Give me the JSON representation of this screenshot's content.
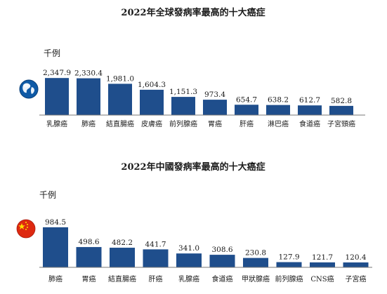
{
  "chart_data": [
    {
      "type": "bar",
      "title": "2022年全球發病率最高的十大癌症",
      "ylabel": "千例",
      "categories": [
        "乳腺癌",
        "肺癌",
        "結直腸癌",
        "皮膚癌",
        "前列腺癌",
        "胃癌",
        "肝癌",
        "淋巴癌",
        "食道癌",
        "子宮頸癌"
      ],
      "values": [
        2347.9,
        2330.4,
        1981.0,
        1604.3,
        1151.3,
        973.4,
        654.7,
        638.2,
        612.7,
        582.8
      ],
      "value_labels": [
        "2,347.9",
        "2,330.4",
        "1,981.0",
        "1,604.3",
        "1,151.3",
        "973.4",
        "654.7",
        "638.2",
        "612.7",
        "582.8"
      ],
      "ylim": [
        0,
        2400
      ],
      "grid": false,
      "legend": "none",
      "bar_color": "#1f4e8c",
      "icon": "globe-icon"
    },
    {
      "type": "bar",
      "title": "2022年中國發病率最高的十大癌症",
      "ylabel": "千例",
      "categories": [
        "肺癌",
        "胃癌",
        "結直腸癌",
        "肝癌",
        "乳腺癌",
        "食道癌",
        "甲狀腺癌",
        "前列腺癌",
        "CNS癌",
        "子宮癌"
      ],
      "values": [
        984.5,
        498.6,
        482.2,
        441.7,
        341.0,
        308.6,
        230.8,
        127.9,
        121.7,
        120.4
      ],
      "value_labels": [
        "984.5",
        "498.6",
        "482.2",
        "441.7",
        "341.0",
        "308.6",
        "230.8",
        "127.9",
        "121.7",
        "120.4"
      ],
      "ylim": [
        0,
        1000
      ],
      "grid": false,
      "legend": "none",
      "bar_color": "#1f4e8c",
      "icon": "china-flag-icon"
    }
  ]
}
